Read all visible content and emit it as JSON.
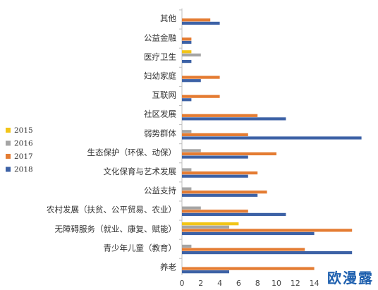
{
  "chart_data": {
    "type": "bar",
    "orientation": "horizontal",
    "categories": [
      "其他",
      "公益金融",
      "医疗卫生",
      "妇幼家庭",
      "互联网",
      "社区发展",
      "弱势群体",
      "生态保护（环保、动保）",
      "文化保育与艺术发展",
      "公益支持",
      "农村发展（扶贫、公平贸易、农业）",
      "无障碍服务（就业、康复、赋能）",
      "青少年儿童（教育）",
      "养老"
    ],
    "series": [
      {
        "name": "2015",
        "color": "#f2c518",
        "values": [
          0,
          0,
          1,
          0,
          0,
          0,
          0,
          0,
          0,
          0,
          0,
          6,
          0,
          0
        ]
      },
      {
        "name": "2016",
        "color": "#a5a5a5",
        "values": [
          0,
          0,
          2,
          0,
          0,
          0,
          1,
          2,
          1,
          1,
          2,
          5,
          1,
          0
        ]
      },
      {
        "name": "2017",
        "color": "#e47c33",
        "values": [
          3,
          1,
          0,
          4,
          4,
          8,
          7,
          10,
          8,
          9,
          7,
          18,
          13,
          14
        ]
      },
      {
        "name": "2018",
        "color": "#3d62a6",
        "values": [
          4,
          1,
          1,
          2,
          1,
          11,
          19,
          7,
          7,
          8,
          11,
          14,
          18,
          5
        ]
      }
    ],
    "xlim": [
      0,
      20
    ],
    "xticks": [
      0,
      2,
      4,
      6,
      8,
      10,
      12,
      14
    ],
    "legend_position": "left"
  },
  "watermark": "欧漫露"
}
